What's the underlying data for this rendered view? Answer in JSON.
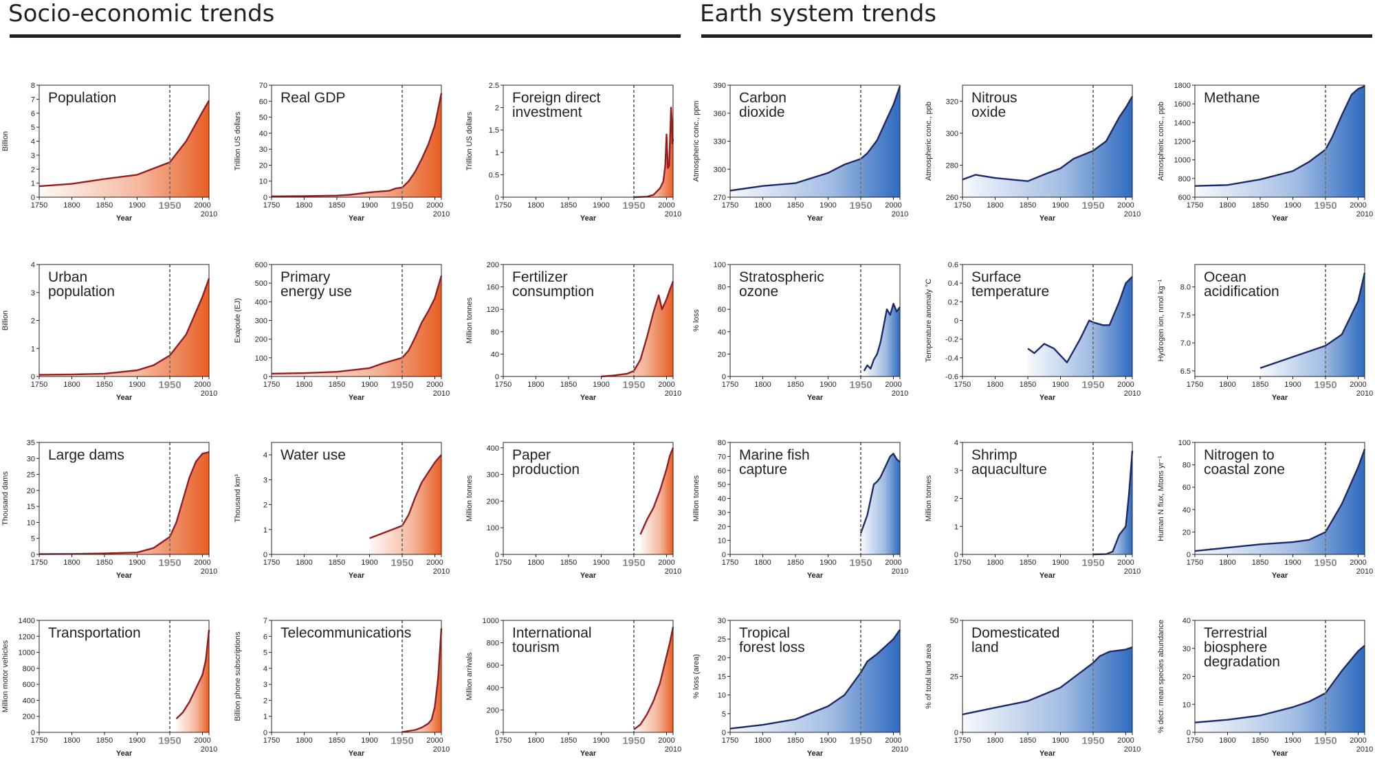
{
  "sections": [
    {
      "title": "Socio-economic trends"
    },
    {
      "title": "Earth system trends"
    }
  ],
  "colors": {
    "socio_line": "#9b1b1b",
    "socio_fill": "#e85f24",
    "earth_line": "#1a2a6c",
    "earth_fill": "#2f6bc0",
    "axis": "#231f20",
    "marker_1950": "#777777"
  },
  "marker_year": "1950",
  "chart_data": [
    {
      "type": "area",
      "title": "Population",
      "ylabel": "Billion",
      "xlabel": "Year",
      "xlim": [
        1750,
        2010
      ],
      "xticks": [
        "1750",
        "1800",
        "1850",
        "1900",
        "1950",
        "2000",
        "2010"
      ],
      "ylim": [
        0,
        8
      ],
      "yticks": [
        "0",
        "1",
        "2",
        "3",
        "4",
        "5",
        "6",
        "7",
        "8"
      ],
      "x": [
        1750,
        1800,
        1850,
        1900,
        1950,
        1975,
        2000,
        2010
      ],
      "values": [
        0.78,
        0.95,
        1.3,
        1.6,
        2.5,
        4.0,
        6.1,
        6.9
      ]
    },
    {
      "type": "area",
      "title": "Real GDP",
      "ylabel": "Trillion US dollars",
      "xlabel": "Year",
      "xlim": [
        1750,
        2010
      ],
      "xticks": [
        "1750",
        "1800",
        "1850",
        "1900",
        "1950",
        "2000",
        "2010"
      ],
      "ylim": [
        0,
        70
      ],
      "yticks": [
        "0",
        "10",
        "20",
        "30",
        "40",
        "50",
        "60",
        "70"
      ],
      "x": [
        1750,
        1800,
        1850,
        1870,
        1900,
        1913,
        1930,
        1940,
        1950,
        1960,
        1970,
        1980,
        1990,
        2000,
        2005,
        2010
      ],
      "values": [
        0.5,
        0.7,
        1,
        1.5,
        3,
        3.5,
        4,
        5.5,
        6,
        10,
        16,
        24,
        33,
        45,
        55,
        65
      ]
    },
    {
      "type": "area",
      "title": "Foreign direct\ninvestment",
      "ylabel": "Trillion US dollars",
      "xlabel": "Year",
      "xlim": [
        1750,
        2010
      ],
      "xticks": [
        "1750",
        "1800",
        "1850",
        "1900",
        "1950",
        "2000",
        "2010"
      ],
      "ylim": [
        0,
        2.5
      ],
      "yticks": [
        "0",
        "0.5",
        "1",
        "1.5",
        "2",
        "2.5"
      ],
      "x": [
        1950,
        1970,
        1980,
        1990,
        1995,
        1998,
        2000,
        2002,
        2004,
        2007,
        2008,
        2009,
        2010
      ],
      "values": [
        0,
        0.01,
        0.05,
        0.2,
        0.35,
        0.7,
        1.4,
        0.65,
        0.7,
        2.0,
        1.75,
        1.2,
        1.3
      ]
    },
    {
      "type": "area",
      "title": "Urban\npopulation",
      "ylabel": "Billion",
      "xlabel": "Year",
      "xlim": [
        1750,
        2010
      ],
      "xticks": [
        "1750",
        "1800",
        "1850",
        "1900",
        "1950",
        "2000",
        "2010"
      ],
      "ylim": [
        0,
        4
      ],
      "yticks": [
        "0",
        "1",
        "2",
        "3",
        "4"
      ],
      "x": [
        1750,
        1800,
        1850,
        1900,
        1925,
        1950,
        1975,
        2000,
        2010
      ],
      "values": [
        0.06,
        0.07,
        0.1,
        0.22,
        0.4,
        0.75,
        1.5,
        2.85,
        3.5
      ]
    },
    {
      "type": "area",
      "title": "Primary\nenergy use",
      "ylabel": "Exajoule (EJ)",
      "xlabel": "Year",
      "xlim": [
        1750,
        2010
      ],
      "xticks": [
        "1750",
        "1800",
        "1850",
        "1900",
        "1950",
        "2000",
        "2010"
      ],
      "ylim": [
        0,
        600
      ],
      "yticks": [
        "0",
        "100",
        "200",
        "300",
        "400",
        "500",
        "600"
      ],
      "x": [
        1750,
        1800,
        1850,
        1900,
        1920,
        1940,
        1950,
        1960,
        1970,
        1980,
        1990,
        2000,
        2010
      ],
      "values": [
        15,
        18,
        25,
        45,
        70,
        90,
        100,
        140,
        210,
        290,
        350,
        420,
        540
      ]
    },
    {
      "type": "area",
      "title": "Fertilizer\nconsumption",
      "ylabel": "Million tonnes",
      "xlabel": "Year",
      "xlim": [
        1750,
        2010
      ],
      "xticks": [
        "1750",
        "1800",
        "1850",
        "1900",
        "1950",
        "2000",
        "2010"
      ],
      "ylim": [
        0,
        200
      ],
      "yticks": [
        "0",
        "40",
        "80",
        "120",
        "160",
        "200"
      ],
      "x": [
        1900,
        1920,
        1940,
        1950,
        1960,
        1970,
        1980,
        1988,
        1993,
        2000,
        2005,
        2010
      ],
      "values": [
        0,
        2,
        5,
        10,
        30,
        70,
        115,
        145,
        120,
        138,
        155,
        170
      ]
    },
    {
      "type": "area",
      "title": "Large dams",
      "ylabel": "Thousand dams",
      "xlabel": "Year",
      "xlim": [
        1750,
        2010
      ],
      "xticks": [
        "1750",
        "1800",
        "1850",
        "1900",
        "1950",
        "2000",
        "2010"
      ],
      "ylim": [
        0,
        35
      ],
      "yticks": [
        "0",
        "5",
        "10",
        "15",
        "20",
        "25",
        "30",
        "35"
      ],
      "x": [
        1750,
        1800,
        1850,
        1900,
        1925,
        1950,
        1960,
        1970,
        1980,
        1990,
        2000,
        2010
      ],
      "values": [
        0.1,
        0.15,
        0.3,
        0.6,
        2,
        5.5,
        10,
        17,
        24,
        29,
        31.5,
        32
      ]
    },
    {
      "type": "area",
      "title": "Water use",
      "ylabel": "Thousand km³",
      "xlabel": "Year",
      "xlim": [
        1750,
        2010
      ],
      "xticks": [
        "1750",
        "1800",
        "1850",
        "1900",
        "1950",
        "2000",
        "2010"
      ],
      "ylim": [
        0,
        4.5
      ],
      "yticks": [
        "0",
        "1",
        "2",
        "3",
        "4"
      ],
      "x": [
        1900,
        1925,
        1950,
        1960,
        1970,
        1980,
        1990,
        2000,
        2010
      ],
      "values": [
        0.65,
        0.9,
        1.15,
        1.6,
        2.3,
        2.9,
        3.3,
        3.7,
        4.0
      ]
    },
    {
      "type": "area",
      "title": "Paper\nproduction",
      "ylabel": "Million tonnes",
      "xlabel": "Year",
      "xlim": [
        1750,
        2010
      ],
      "xticks": [
        "1750",
        "1800",
        "1850",
        "1900",
        "1950",
        "2000",
        "2010"
      ],
      "ylim": [
        0,
        420
      ],
      "yticks": [
        "0",
        "100",
        "200",
        "300",
        "400"
      ],
      "x": [
        1960,
        1970,
        1980,
        1990,
        2000,
        2005,
        2010
      ],
      "values": [
        75,
        130,
        175,
        240,
        320,
        370,
        400
      ]
    },
    {
      "type": "area",
      "title": "Transportation",
      "ylabel": "Million motor vehicles",
      "xlabel": "Year",
      "xlim": [
        1750,
        2010
      ],
      "xticks": [
        "1750",
        "1800",
        "1850",
        "1900",
        "1950",
        "2000",
        "2010"
      ],
      "ylim": [
        0,
        1400
      ],
      "yticks": [
        "0",
        "200",
        "400",
        "600",
        "800",
        "1000",
        "1200",
        "1400"
      ],
      "x": [
        1960,
        1970,
        1980,
        1990,
        2000,
        2005,
        2010
      ],
      "values": [
        170,
        250,
        380,
        550,
        720,
        900,
        1280
      ]
    },
    {
      "type": "area",
      "title": "Telecommunications",
      "ylabel": "Billion phone subscriptions",
      "xlabel": "Year",
      "xlim": [
        1750,
        2010
      ],
      "xticks": [
        "1750",
        "1800",
        "1850",
        "1900",
        "1950",
        "2000",
        "2010"
      ],
      "ylim": [
        0,
        7
      ],
      "yticks": [
        "0",
        "1",
        "2",
        "3",
        "4",
        "5",
        "6",
        "7"
      ],
      "x": [
        1950,
        1970,
        1980,
        1990,
        1995,
        2000,
        2005,
        2010
      ],
      "values": [
        0.02,
        0.15,
        0.3,
        0.55,
        0.8,
        1.6,
        3.4,
        6.5
      ]
    },
    {
      "type": "area",
      "title": "International\ntourism",
      "ylabel": "Million arrivals",
      "xlabel": "Year",
      "xlim": [
        1750,
        2010
      ],
      "xticks": [
        "1750",
        "1800",
        "1850",
        "1900",
        "1950",
        "2000",
        "2010"
      ],
      "ylim": [
        0,
        1000
      ],
      "yticks": [
        "0",
        "200",
        "400",
        "600",
        "800",
        "1000"
      ],
      "x": [
        1950,
        1960,
        1970,
        1980,
        1990,
        2000,
        2005,
        2010
      ],
      "values": [
        25,
        70,
        160,
        280,
        440,
        680,
        800,
        940
      ]
    },
    {
      "type": "area",
      "title": "Carbon\ndioxide",
      "ylabel": "Atmospheric conc., ppm",
      "xlabel": "Year",
      "xlim": [
        1750,
        2010
      ],
      "xticks": [
        "1750",
        "1800",
        "1850",
        "1900",
        "1950",
        "2000",
        "2010"
      ],
      "ylim": [
        270,
        390
      ],
      "yticks": [
        "270",
        "300",
        "330",
        "360",
        "390"
      ],
      "x": [
        1750,
        1800,
        1850,
        1900,
        1925,
        1950,
        1960,
        1975,
        1990,
        2000,
        2010
      ],
      "values": [
        277,
        282,
        285,
        296,
        305,
        311,
        317,
        331,
        354,
        369,
        389
      ]
    },
    {
      "type": "area",
      "title": "Nitrous\noxide",
      "ylabel": "Atmospheric conc., ppb",
      "xlabel": "Year",
      "xlim": [
        1750,
        2010
      ],
      "xticks": [
        "1750",
        "1800",
        "1850",
        "1900",
        "1950",
        "2000",
        "2010"
      ],
      "ylim": [
        260,
        330
      ],
      "yticks": [
        "260",
        "280",
        "300",
        "320"
      ],
      "x": [
        1750,
        1770,
        1800,
        1850,
        1880,
        1900,
        1920,
        1950,
        1970,
        1990,
        2000,
        2010
      ],
      "values": [
        271,
        274,
        272,
        270,
        275,
        278,
        284,
        289,
        295,
        310,
        316,
        323
      ]
    },
    {
      "type": "area",
      "title": "Methane",
      "ylabel": "Atmospheric conc., ppb",
      "xlabel": "Year",
      "xlim": [
        1750,
        2010
      ],
      "xticks": [
        "1750",
        "1800",
        "1850",
        "1900",
        "1950",
        "2000",
        "2010"
      ],
      "ylim": [
        600,
        1800
      ],
      "yticks": [
        "600",
        "800",
        "1000",
        "1200",
        "1400",
        "1600",
        "1800"
      ],
      "x": [
        1750,
        1800,
        1850,
        1900,
        1925,
        1950,
        1960,
        1975,
        1990,
        2000,
        2010
      ],
      "values": [
        720,
        730,
        790,
        880,
        980,
        1110,
        1240,
        1480,
        1700,
        1760,
        1790
      ]
    },
    {
      "type": "area",
      "title": "Stratospheric\nozone",
      "ylabel": "% loss",
      "xlabel": "Year",
      "xlim": [
        1750,
        2010
      ],
      "xticks": [
        "1750",
        "1800",
        "1850",
        "1900",
        "1950",
        "2000",
        "2010"
      ],
      "ylim": [
        0,
        100
      ],
      "yticks": [
        "0",
        "20",
        "40",
        "60",
        "80",
        "100"
      ],
      "x": [
        1955,
        1960,
        1965,
        1970,
        1975,
        1980,
        1985,
        1990,
        1995,
        2000,
        2005,
        2010
      ],
      "values": [
        5,
        10,
        7,
        15,
        20,
        30,
        45,
        60,
        55,
        65,
        58,
        62
      ]
    },
    {
      "type": "area",
      "title": "Surface\ntemperature",
      "ylabel": "Temperature anomaly °C",
      "xlabel": "Year",
      "xlim": [
        1750,
        2010
      ],
      "xticks": [
        "1750",
        "1800",
        "1850",
        "1900",
        "1950",
        "2000",
        "2010"
      ],
      "ylim": [
        -0.6,
        0.6
      ],
      "yticks": [
        "-0.6",
        "-0.4",
        "-0.2",
        "0",
        "0.2",
        "0.4",
        "0.6"
      ],
      "x": [
        1850,
        1860,
        1875,
        1890,
        1910,
        1930,
        1944,
        1950,
        1965,
        1975,
        1990,
        2000,
        2010
      ],
      "values": [
        -0.3,
        -0.35,
        -0.25,
        -0.3,
        -0.45,
        -0.2,
        0.0,
        -0.02,
        -0.05,
        -0.05,
        0.2,
        0.4,
        0.47
      ]
    },
    {
      "type": "area",
      "title": "Ocean\nacidification",
      "ylabel": "Hydrogen ion, nmol kg⁻¹",
      "xlabel": "Year",
      "xlim": [
        1750,
        2010
      ],
      "xticks": [
        "1750",
        "1800",
        "1850",
        "1900",
        "1950",
        "2000",
        "2010"
      ],
      "ylim": [
        6.4,
        8.4
      ],
      "yticks": [
        "6.5",
        "7.0",
        "7.5",
        "8.0"
      ],
      "x": [
        1850,
        1900,
        1950,
        1975,
        2000,
        2010
      ],
      "values": [
        6.55,
        6.75,
        6.95,
        7.15,
        7.75,
        8.25
      ]
    },
    {
      "type": "area",
      "title": "Marine fish\ncapture",
      "ylabel": "Million tonnes",
      "xlabel": "Year",
      "xlim": [
        1750,
        2010
      ],
      "xticks": [
        "1750",
        "1800",
        "1850",
        "1900",
        "1950",
        "2000",
        "2010"
      ],
      "ylim": [
        0,
        80
      ],
      "yticks": [
        "0",
        "10",
        "20",
        "30",
        "40",
        "50",
        "60",
        "70",
        "80"
      ],
      "x": [
        1950,
        1960,
        1970,
        1975,
        1980,
        1990,
        1995,
        2000,
        2005,
        2010
      ],
      "values": [
        15,
        28,
        50,
        52,
        55,
        65,
        70,
        72,
        68,
        66
      ]
    },
    {
      "type": "area",
      "title": "Shrimp\naquaculture",
      "ylabel": "Million tonnes",
      "xlabel": "Year",
      "xlim": [
        1750,
        2010
      ],
      "xticks": [
        "1750",
        "1800",
        "1850",
        "1900",
        "1950",
        "2000",
        "2010"
      ],
      "ylim": [
        0,
        4
      ],
      "yticks": [
        "0",
        "1",
        "2",
        "3",
        "4"
      ],
      "x": [
        1950,
        1970,
        1980,
        1990,
        1995,
        2000,
        2005,
        2010
      ],
      "values": [
        0,
        0.01,
        0.1,
        0.7,
        0.85,
        1.0,
        2.2,
        3.7
      ]
    },
    {
      "type": "area",
      "title": "Nitrogen to\ncoastal zone",
      "ylabel": "Human N flux, Mtons yr⁻¹",
      "xlabel": "Year",
      "xlim": [
        1750,
        2010
      ],
      "xticks": [
        "1750",
        "1800",
        "1850",
        "1900",
        "1950",
        "2000",
        "2010"
      ],
      "ylim": [
        0,
        100
      ],
      "yticks": [
        "0",
        "20",
        "40",
        "60",
        "80",
        "100"
      ],
      "x": [
        1750,
        1800,
        1850,
        1900,
        1925,
        1950,
        1975,
        2000,
        2010
      ],
      "values": [
        3,
        6,
        9,
        11,
        13,
        20,
        45,
        78,
        94
      ]
    },
    {
      "type": "area",
      "title": "Tropical\nforest loss",
      "ylabel": "% loss (area)",
      "xlabel": "Year",
      "xlim": [
        1750,
        2010
      ],
      "xticks": [
        "1750",
        "1800",
        "1850",
        "1900",
        "1950",
        "2000",
        "2010"
      ],
      "ylim": [
        0,
        30
      ],
      "yticks": [
        "0",
        "5",
        "10",
        "15",
        "20",
        "25",
        "30"
      ],
      "x": [
        1750,
        1800,
        1850,
        1900,
        1925,
        1950,
        1960,
        1975,
        2000,
        2010
      ],
      "values": [
        1,
        2,
        3.5,
        7,
        10,
        16,
        19,
        21,
        25,
        27.5
      ]
    },
    {
      "type": "area",
      "title": "Domesticated\nland",
      "ylabel": "% of total land area",
      "xlabel": "Year",
      "xlim": [
        1750,
        2010
      ],
      "xticks": [
        "1750",
        "1800",
        "1850",
        "1900",
        "1950",
        "2000",
        "2010"
      ],
      "ylim": [
        0,
        50
      ],
      "yticks": [
        "0",
        "25",
        "50"
      ],
      "x": [
        1750,
        1800,
        1850,
        1900,
        1950,
        1960,
        1975,
        2000,
        2010
      ],
      "values": [
        8,
        11,
        14,
        20,
        31,
        34,
        36,
        37,
        38
      ]
    },
    {
      "type": "area",
      "title": "Terrestrial\nbiosphere\ndegradation",
      "ylabel": "% decr. mean species abundance",
      "xlabel": "Year",
      "xlim": [
        1750,
        2010
      ],
      "xticks": [
        "1750",
        "1800",
        "1850",
        "1900",
        "1950",
        "2000",
        "2010"
      ],
      "ylim": [
        0,
        40
      ],
      "yticks": [
        "0",
        "10",
        "20",
        "30",
        "40"
      ],
      "x": [
        1750,
        1800,
        1850,
        1900,
        1925,
        1950,
        1975,
        2000,
        2010
      ],
      "values": [
        3.5,
        4.5,
        6,
        9,
        11,
        14,
        22,
        29,
        31
      ]
    }
  ]
}
